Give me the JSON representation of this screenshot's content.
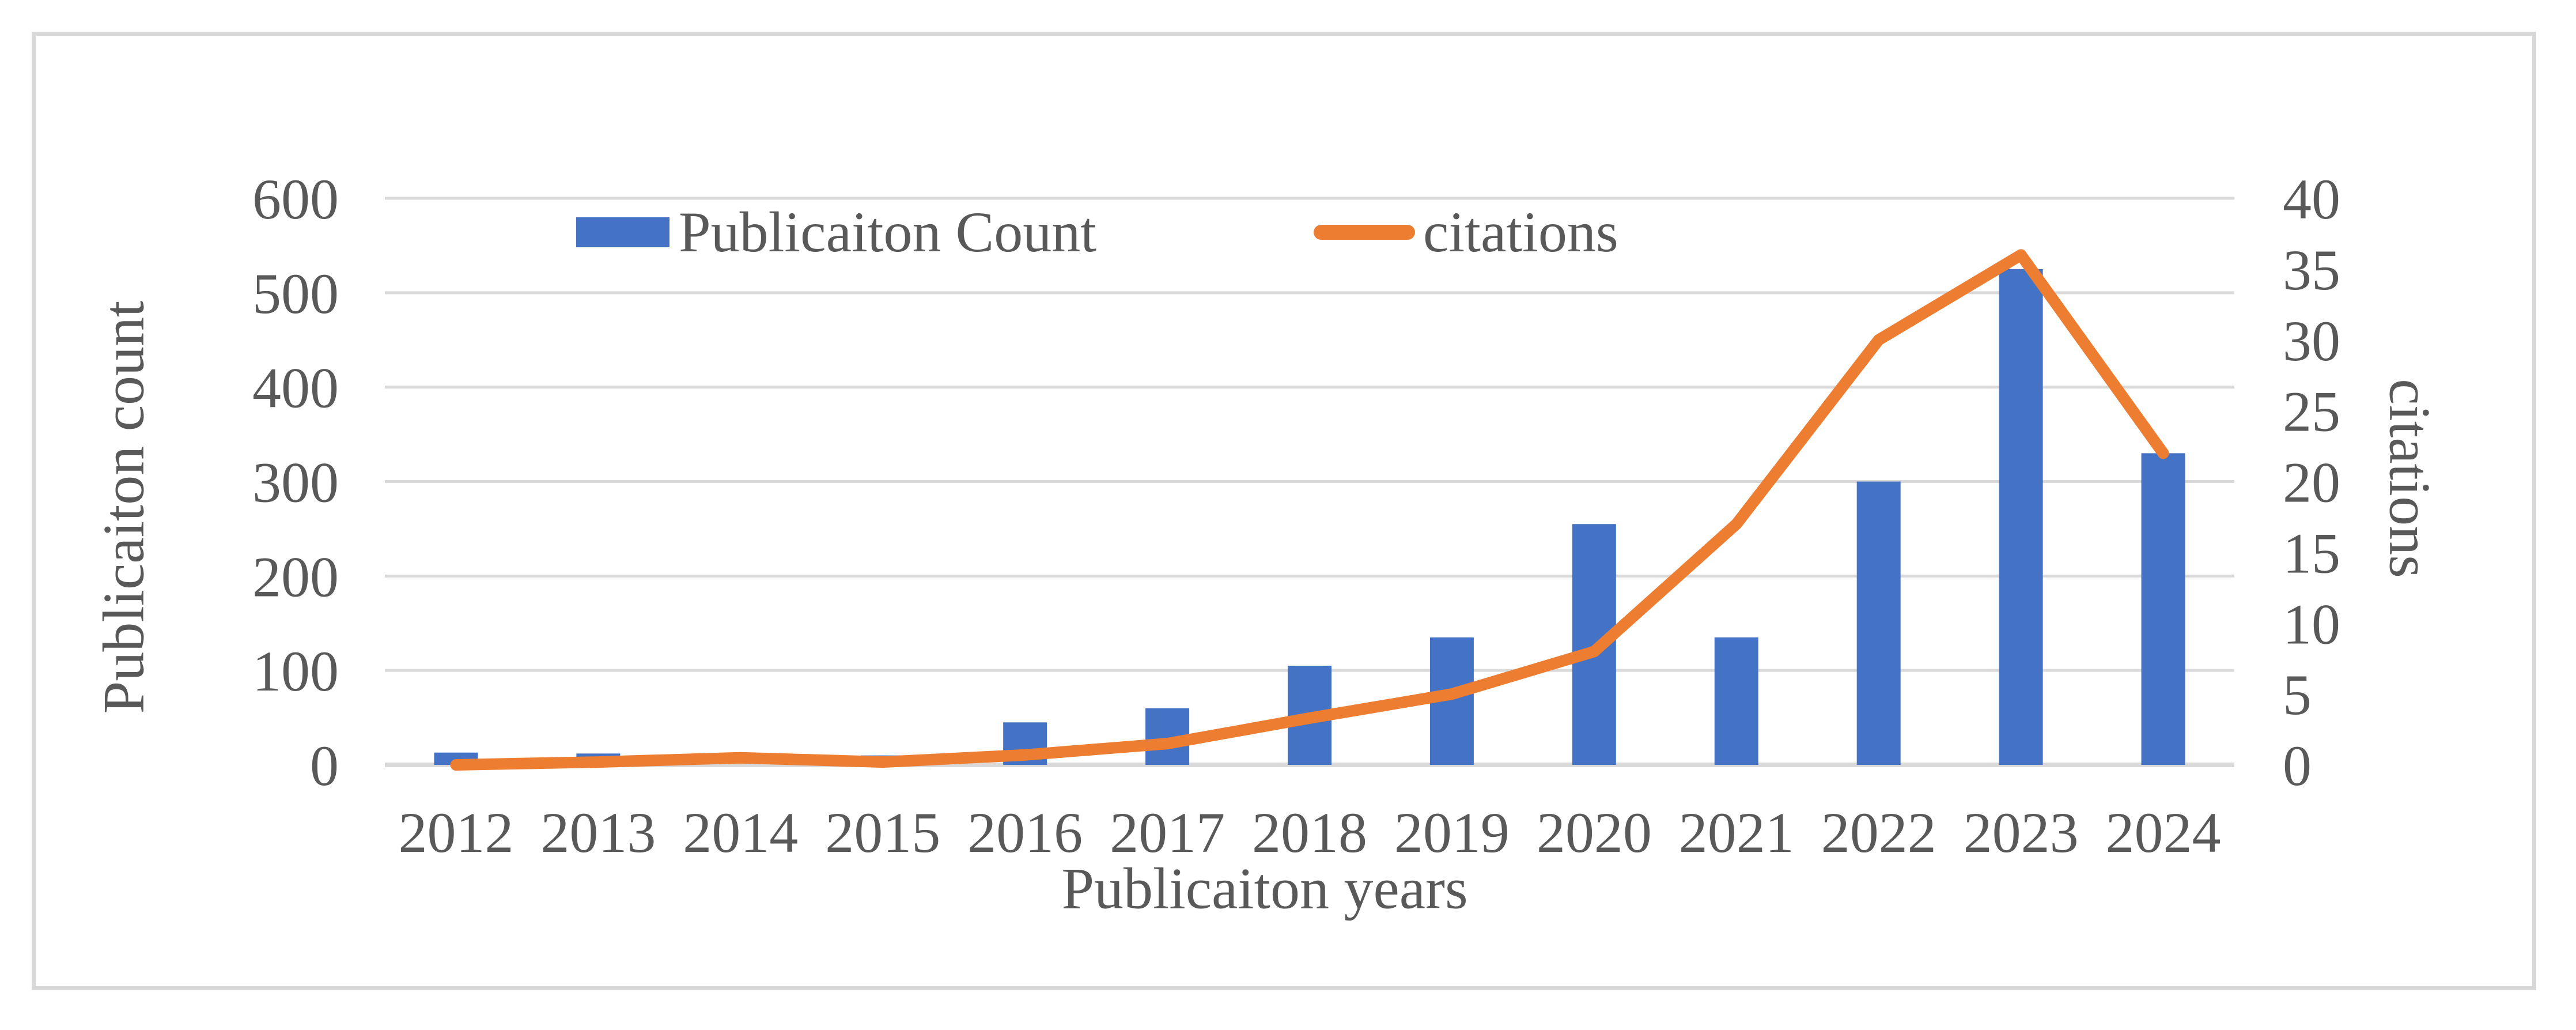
{
  "figure": {
    "background": "#ffffff",
    "border_color": "#d8d8d8"
  },
  "legend": {
    "publication_label": "Publicaiton Count",
    "citations_label": "citations"
  },
  "axes": {
    "left_title": "Publicaiton count",
    "bottom_title": "Publicaiton years",
    "right_title": "citations"
  },
  "colors": {
    "bar": "#4472C4",
    "line": "#ED7D31",
    "grid": "#D9D9D9",
    "text": "#595959"
  },
  "chart_data": {
    "type": "combo-bar-line",
    "categories": [
      "2012",
      "2013",
      "2014",
      "2015",
      "2016",
      "2017",
      "2018",
      "2019",
      "2020",
      "2021",
      "2022",
      "2023",
      "2024"
    ],
    "series": [
      {
        "name": "Publicaiton Count",
        "type": "bar",
        "axis": "left",
        "color": "#4472C4",
        "values": [
          13,
          12,
          0,
          10,
          45,
          60,
          105,
          135,
          255,
          135,
          300,
          525,
          330
        ]
      },
      {
        "name": "citations",
        "type": "line",
        "axis": "right",
        "color": "#ED7D31",
        "values": [
          0,
          0.2,
          0.5,
          0.2,
          0.7,
          1.5,
          3.3,
          5,
          8,
          17,
          30,
          36,
          22
        ]
      }
    ],
    "left_axis": {
      "label": "Publicaiton count",
      "min": 0,
      "max": 600,
      "step": 100,
      "ticks": [
        0,
        100,
        200,
        300,
        400,
        500,
        600
      ]
    },
    "right_axis": {
      "label": "citations",
      "min": 0,
      "max": 40,
      "step": 5,
      "ticks": [
        0,
        5,
        10,
        15,
        20,
        25,
        30,
        35,
        40
      ]
    },
    "xlabel": "Publicaiton years",
    "grid": true,
    "legend_position": "top-inside"
  }
}
